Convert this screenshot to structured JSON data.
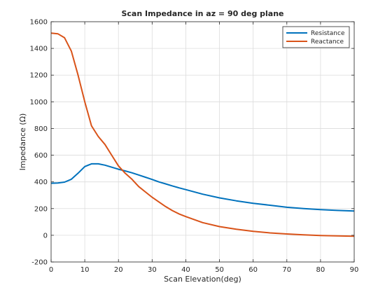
{
  "chart_data": {
    "type": "line",
    "title": "Scan Impedance in az = 90 deg plane",
    "xlabel": "Scan Elevation(deg)",
    "ylabel": "Impedance (Ω)",
    "xlim": [
      0,
      90
    ],
    "ylim": [
      -200,
      1600
    ],
    "xticks": [
      "0",
      "10",
      "20",
      "30",
      "40",
      "50",
      "60",
      "70",
      "80",
      "90"
    ],
    "yticks": [
      "-200",
      "0",
      "200",
      "400",
      "600",
      "800",
      "1000",
      "1200",
      "1400",
      "1600"
    ],
    "grid": true,
    "legend_position": "top-right",
    "x": [
      0,
      2,
      4,
      6,
      8,
      10,
      12,
      14,
      16,
      18,
      20,
      22,
      24,
      26,
      28,
      30,
      32,
      34,
      36,
      38,
      40,
      45,
      50,
      55,
      60,
      65,
      70,
      75,
      80,
      85,
      90
    ],
    "series": [
      {
        "name": "Resistance",
        "color": "#0072bd",
        "values": [
          390,
          392,
          398,
          420,
          465,
          515,
          535,
          535,
          525,
          510,
          495,
          482,
          468,
          452,
          435,
          418,
          400,
          385,
          370,
          355,
          342,
          308,
          280,
          258,
          240,
          225,
          210,
          200,
          192,
          186,
          182
        ]
      },
      {
        "name": "Reactance",
        "color": "#d95319",
        "values": [
          1515,
          1510,
          1480,
          1380,
          1200,
          1000,
          820,
          740,
          680,
          600,
          520,
          465,
          420,
          365,
          325,
          285,
          250,
          215,
          185,
          160,
          140,
          95,
          65,
          45,
          30,
          18,
          10,
          3,
          -2,
          -5,
          -7
        ]
      }
    ]
  }
}
